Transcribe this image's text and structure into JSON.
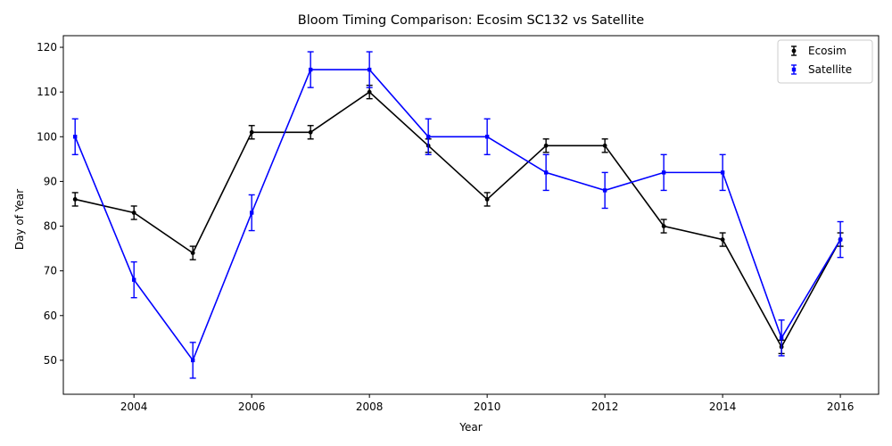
{
  "chart_data": {
    "type": "line",
    "title": "Bloom Timing Comparison: Ecosim SC132 vs Satellite",
    "xlabel": "Year",
    "ylabel": "Day of Year",
    "xlim": [
      2002.8,
      2016.65
    ],
    "ylim": [
      42.4,
      122.6
    ],
    "xticks": [
      2004,
      2006,
      2008,
      2010,
      2012,
      2014,
      2016
    ],
    "yticks": [
      50,
      60,
      70,
      80,
      90,
      100,
      110,
      120
    ],
    "grid": false,
    "legend_position": "top-right",
    "series": [
      {
        "name": "Ecosim",
        "color": "#000000",
        "marker": "circle",
        "x": [
          2003,
          2004,
          2005,
          2006,
          2007,
          2008,
          2009,
          2010,
          2011,
          2012,
          2013,
          2014,
          2015,
          2016
        ],
        "y": [
          86,
          83,
          74,
          101,
          101,
          110,
          98,
          86,
          98,
          98,
          80,
          77,
          53,
          77
        ],
        "error": 1.5
      },
      {
        "name": "Satellite",
        "color": "#0000ff",
        "marker": "square",
        "x": [
          2003,
          2004,
          2005,
          2006,
          2007,
          2008,
          2009,
          2010,
          2011,
          2012,
          2013,
          2014,
          2015,
          2016
        ],
        "y": [
          100,
          68,
          50,
          83,
          115,
          115,
          100,
          100,
          92,
          88,
          92,
          92,
          55,
          77
        ],
        "error": 4
      }
    ]
  }
}
